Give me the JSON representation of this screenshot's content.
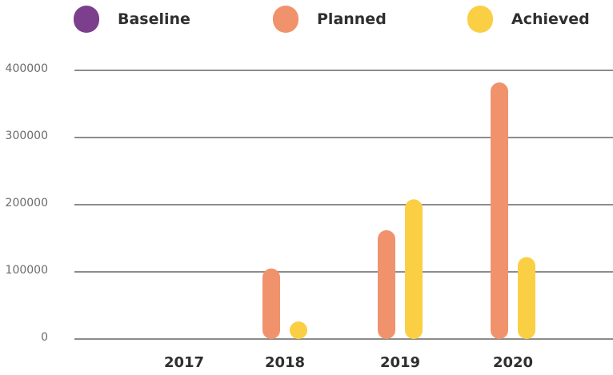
{
  "chart_data": {
    "type": "bar",
    "title": "",
    "xlabel": "",
    "ylabel": "",
    "categories": [
      "2017",
      "2018",
      "2019",
      "2020"
    ],
    "series": [
      {
        "name": "Baseline",
        "color": "#7b3f8e",
        "values": [
          0,
          0,
          0,
          0
        ]
      },
      {
        "name": "Planned",
        "color": "#f0926c",
        "values": [
          0,
          105000,
          162000,
          382000
        ]
      },
      {
        "name": "Achieved",
        "color": "#fbcf44",
        "values": [
          0,
          18000,
          208000,
          122000
        ]
      }
    ],
    "ylim": [
      0,
      400000
    ],
    "y_ticks": [
      "0",
      "100000",
      "200000",
      "300000",
      "400000"
    ],
    "grid": true,
    "legend_position": "top"
  }
}
